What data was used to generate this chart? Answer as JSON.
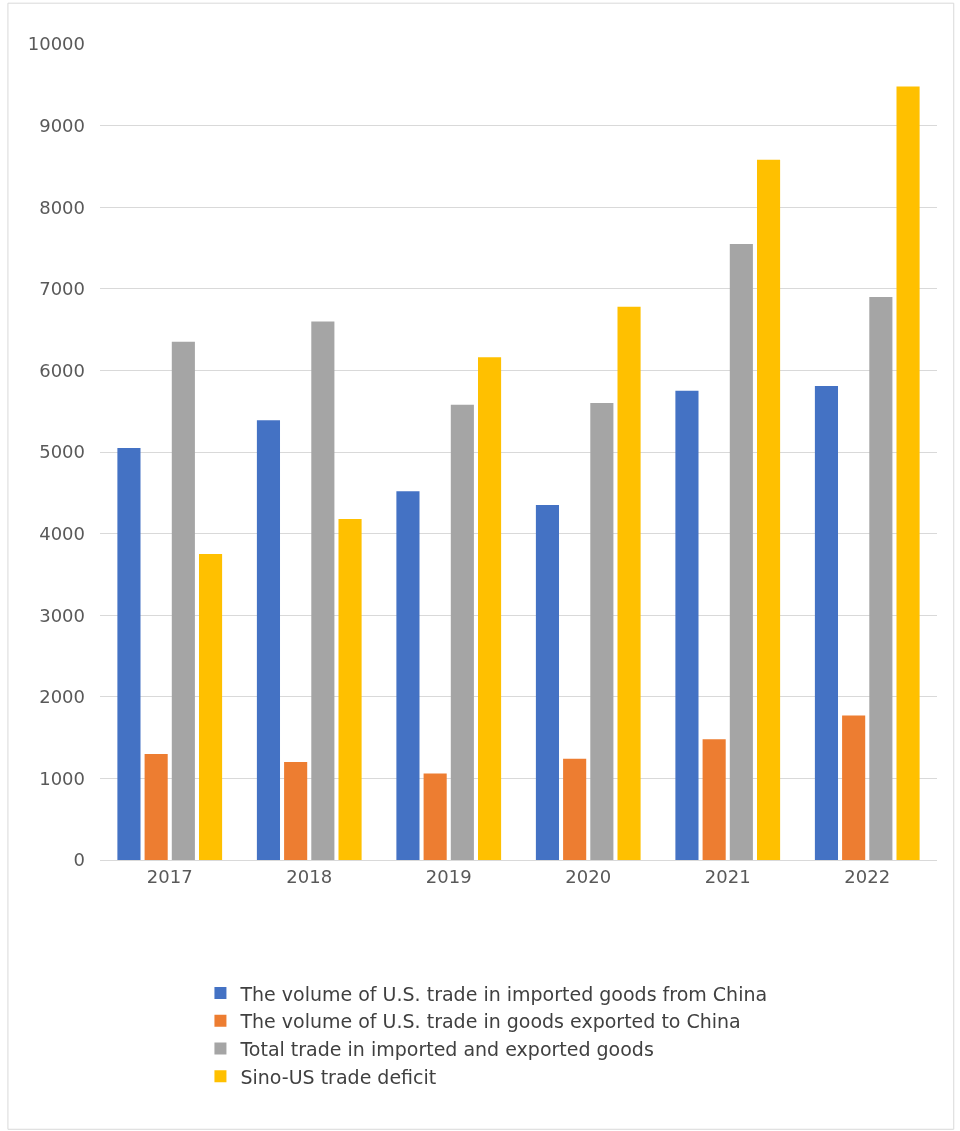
{
  "chart_data": {
    "type": "bar",
    "categories": [
      "2017",
      "2018",
      "2019",
      "2020",
      "2021",
      "2022"
    ],
    "series": [
      {
        "name": "The volume of U.S. trade in imported goods from China",
        "color": "#4472c4",
        "values": [
          5050,
          5390,
          4520,
          4350,
          5750,
          5810
        ]
      },
      {
        "name": "The volume of U.S. trade in goods exported to China",
        "color": "#ed7d31",
        "values": [
          1300,
          1200,
          1060,
          1240,
          1480,
          1770
        ]
      },
      {
        "name": "Total trade in imported and exported goods",
        "color": "#a5a5a5",
        "values": [
          6350,
          6600,
          5580,
          5600,
          7550,
          6900
        ]
      },
      {
        "name": "Sino-US trade deficit",
        "color": "#ffc000",
        "values": [
          3750,
          4180,
          6160,
          6780,
          8580,
          9480
        ]
      }
    ],
    "ylim": [
      0,
      10000
    ],
    "yticks": [
      0,
      1000,
      2000,
      3000,
      4000,
      5000,
      6000,
      7000,
      8000,
      9000,
      10000
    ],
    "grid": "y",
    "legend": "bottom"
  }
}
